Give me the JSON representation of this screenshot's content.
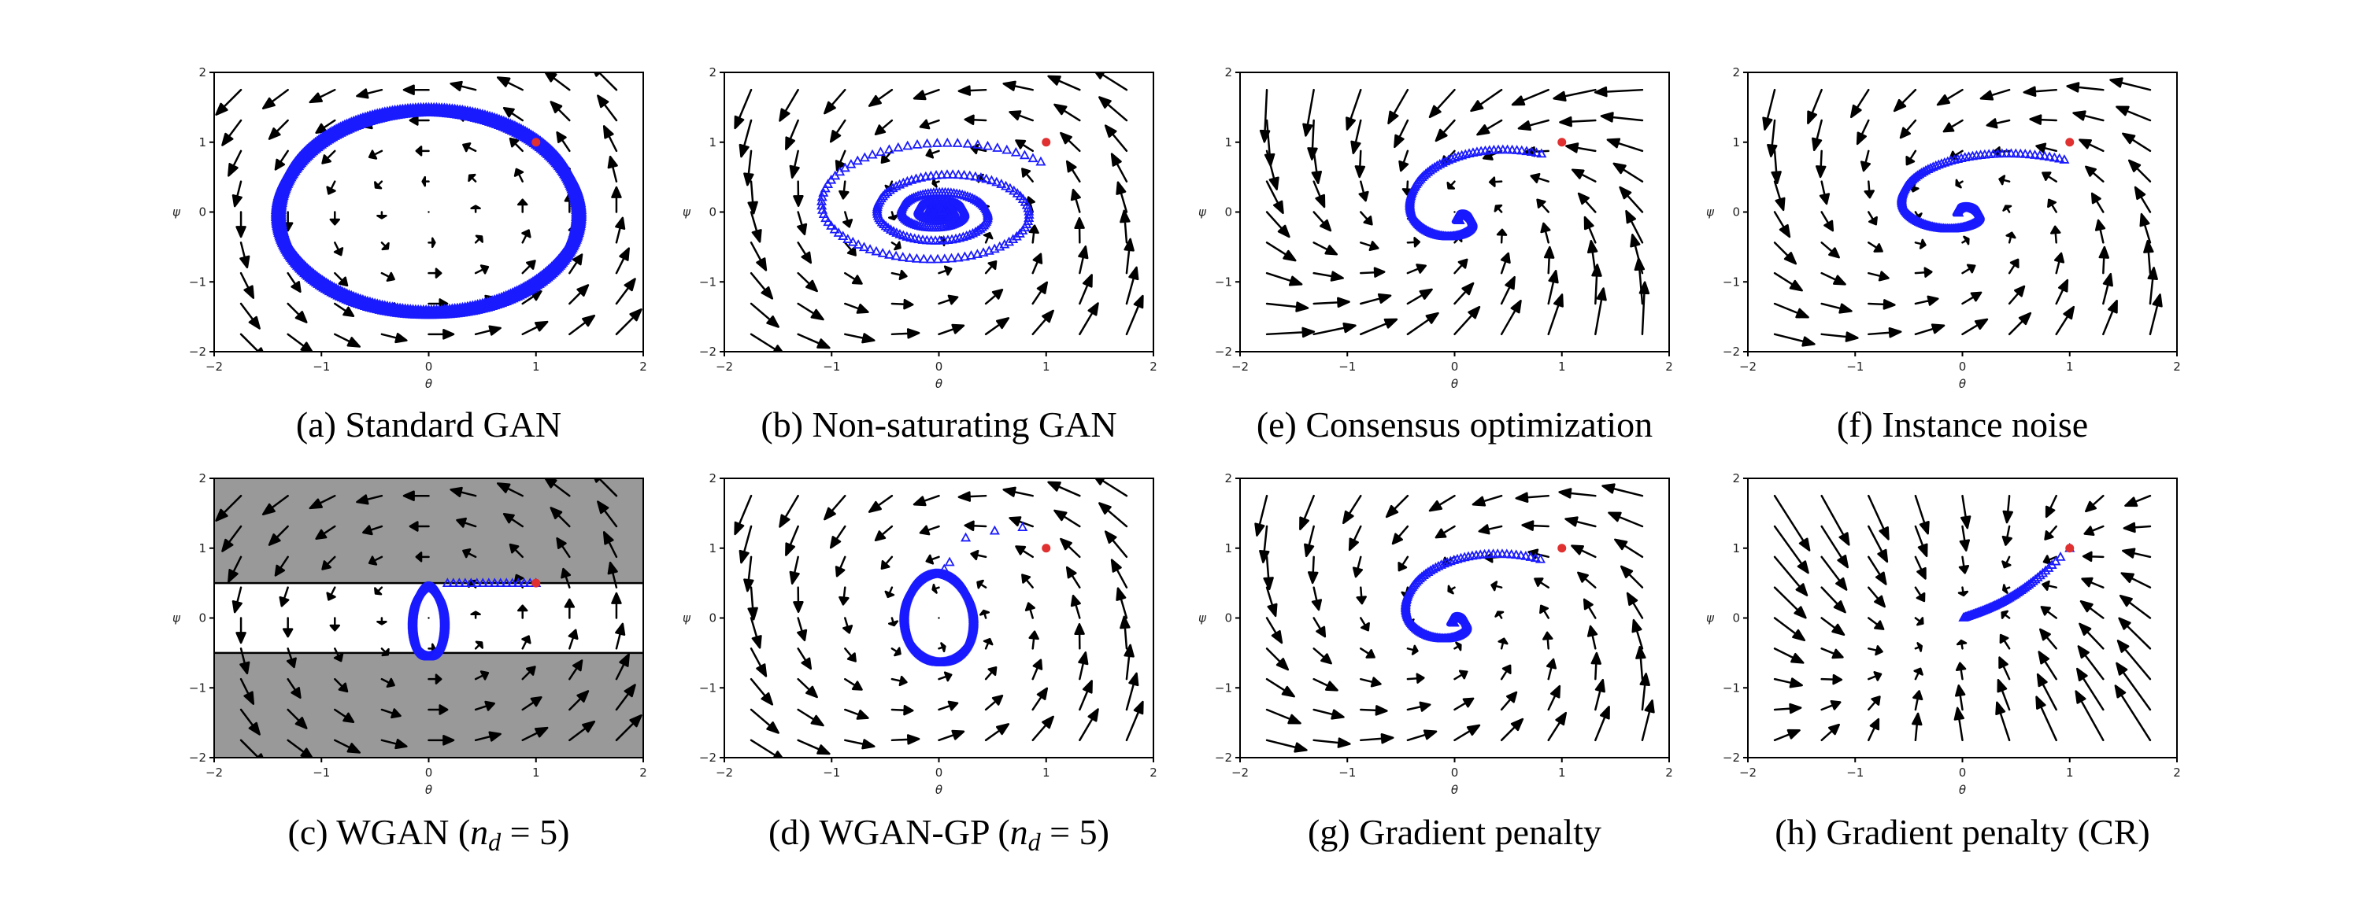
{
  "chart_data": [
    {
      "id": "a",
      "type": "quiver",
      "caption": "(a) Standard GAN",
      "xlabel": "θ",
      "ylabel": "ψ",
      "xlim": [
        -2,
        2
      ],
      "ylim": [
        -2,
        2
      ],
      "xticks": [
        "−2",
        "−1",
        "0",
        "1",
        "2"
      ],
      "yticks": [
        "−2",
        "−1",
        "0",
        "1",
        "2"
      ],
      "field": "rotation",
      "shaded_region": null,
      "trajectory": {
        "kind": "ellipse",
        "cx": 0,
        "cy": 0,
        "rx": 1.4,
        "ry": 1.45,
        "marker": "triangle-dense",
        "color": "#1a1aff"
      },
      "start_point": {
        "x": 1,
        "y": 1,
        "color": "#e03030"
      }
    },
    {
      "id": "b",
      "type": "quiver",
      "caption": "(b) Non-saturating GAN",
      "xlabel": "θ",
      "ylabel": "ψ",
      "xlim": [
        -2,
        2
      ],
      "ylim": [
        -2,
        2
      ],
      "xticks": [
        "−2",
        "−1",
        "0",
        "1",
        "2"
      ],
      "yticks": [
        "−2",
        "−1",
        "0",
        "1",
        "2"
      ],
      "field": "rotation-skewed",
      "shaded_region": null,
      "trajectory": {
        "kind": "spiral-in",
        "start": [
          1,
          1
        ],
        "turns": 6,
        "end_radius": 0.05,
        "marker": "triangle",
        "color": "#1a1aff"
      },
      "start_point": {
        "x": 1,
        "y": 1,
        "color": "#e03030"
      }
    },
    {
      "id": "e",
      "type": "quiver",
      "caption": "(e) Consensus optimization",
      "xlabel": "θ",
      "ylabel": "ψ",
      "xlim": [
        -2,
        2
      ],
      "ylim": [
        -2,
        2
      ],
      "xticks": [
        "−2",
        "−1",
        "0",
        "1",
        "2"
      ],
      "yticks": [
        "−2",
        "−1",
        "0",
        "1",
        "2"
      ],
      "field": "rotation-stretched",
      "shaded_region": null,
      "trajectory": {
        "kind": "spiral-converge",
        "start": [
          1,
          1
        ],
        "center": [
          0.05,
          -0.1
        ],
        "marker": "triangle",
        "color": "#1a1aff"
      },
      "start_point": {
        "x": 1,
        "y": 1,
        "color": "#e03030"
      }
    },
    {
      "id": "f",
      "type": "quiver",
      "caption": "(f) Instance noise",
      "xlabel": "θ",
      "ylabel": "ψ",
      "xlim": [
        -2,
        2
      ],
      "ylim": [
        -2,
        2
      ],
      "xticks": [
        "−2",
        "−1",
        "0",
        "1",
        "2"
      ],
      "yticks": [
        "−2",
        "−1",
        "0",
        "1",
        "2"
      ],
      "field": "rotation-damped",
      "shaded_region": null,
      "trajectory": {
        "kind": "spiral-converge-wide",
        "start": [
          1,
          1
        ],
        "center": [
          0,
          0
        ],
        "marker": "triangle",
        "color": "#1a1aff"
      },
      "start_point": {
        "x": 1,
        "y": 1,
        "color": "#e03030"
      }
    },
    {
      "id": "c",
      "type": "quiver",
      "caption": "(c) WGAN (",
      "caption_math": "n",
      "caption_sub": "d",
      "caption_tail": " = 5)",
      "xlabel": "θ",
      "ylabel": "ψ",
      "xlim": [
        -2,
        2
      ],
      "ylim": [
        -2,
        2
      ],
      "xticks": [
        "−2",
        "−1",
        "0",
        "1",
        "2"
      ],
      "yticks": [
        "−2",
        "−1",
        "0",
        "1",
        "2"
      ],
      "field": "rotation",
      "shaded_region": {
        "y_outside": [
          -0.5,
          0.5
        ],
        "color": "#999999"
      },
      "trajectory": {
        "kind": "wgan",
        "start": [
          1,
          0.5
        ],
        "loop_center": [
          0,
          -0.05
        ],
        "loop_rx": 0.15,
        "loop_ry": 0.5,
        "marker": "triangle",
        "color": "#1a1aff"
      },
      "start_point": {
        "x": 1,
        "y": 0.5,
        "color": "#e03030"
      }
    },
    {
      "id": "d",
      "type": "quiver",
      "caption": "(d) WGAN-GP (",
      "caption_math": "n",
      "caption_sub": "d",
      "caption_tail": " = 5)",
      "xlabel": "θ",
      "ylabel": "ψ",
      "xlim": [
        -2,
        2
      ],
      "ylim": [
        -2,
        2
      ],
      "xticks": [
        "−2",
        "−1",
        "0",
        "1",
        "2"
      ],
      "yticks": [
        "−2",
        "−1",
        "0",
        "1",
        "2"
      ],
      "field": "rotation-skewed",
      "shaded_region": null,
      "trajectory": {
        "kind": "wgangp",
        "start": [
          1,
          1
        ],
        "loop_center": [
          0,
          0
        ],
        "marker": "triangle",
        "color": "#1a1aff"
      },
      "start_point": {
        "x": 1,
        "y": 1,
        "color": "#e03030"
      }
    },
    {
      "id": "g",
      "type": "quiver",
      "caption": "(g) Gradient penalty",
      "xlabel": "θ",
      "ylabel": "ψ",
      "xlim": [
        -2,
        2
      ],
      "ylim": [
        -2,
        2
      ],
      "xticks": [
        "−2",
        "−1",
        "0",
        "1",
        "2"
      ],
      "yticks": [
        "−2",
        "−1",
        "0",
        "1",
        "2"
      ],
      "field": "rotation-damped",
      "shaded_region": null,
      "trajectory": {
        "kind": "spiral-converge",
        "start": [
          1,
          1
        ],
        "center": [
          0,
          -0.05
        ],
        "marker": "triangle",
        "color": "#1a1aff"
      },
      "start_point": {
        "x": 1,
        "y": 1,
        "color": "#e03030"
      }
    },
    {
      "id": "h",
      "type": "quiver",
      "caption": "(h) Gradient penalty (CR)",
      "xlabel": "θ",
      "ylabel": "ψ",
      "xlim": [
        -2,
        2
      ],
      "ylim": [
        -2,
        2
      ],
      "xticks": [
        "−2",
        "−1",
        "0",
        "1",
        "2"
      ],
      "yticks": [
        "−2",
        "−1",
        "0",
        "1",
        "2"
      ],
      "field": "contracting",
      "shaded_region": null,
      "trajectory": {
        "kind": "straight",
        "start": [
          1,
          1
        ],
        "end": [
          0,
          0
        ],
        "marker": "triangle",
        "color": "#1a1aff"
      },
      "start_point": {
        "x": 1,
        "y": 1,
        "color": "#e03030"
      }
    }
  ]
}
